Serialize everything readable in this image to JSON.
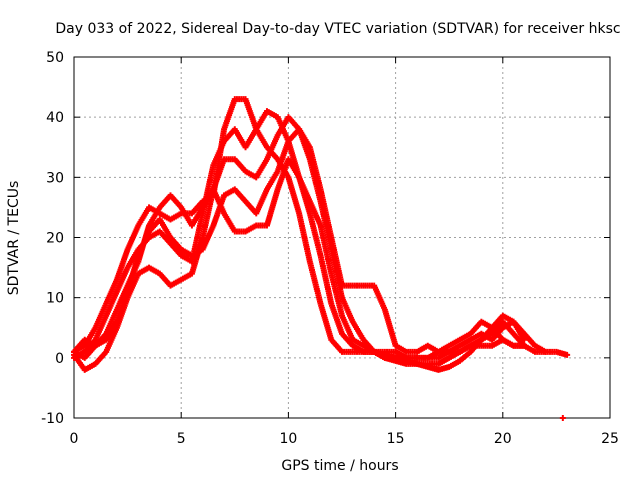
{
  "chart_data": {
    "type": "scatter",
    "title": "Day 033 of 2022, Sidereal Day-to-day VTEC variation (SDTVAR) for receiver hksc",
    "xlabel": "GPS time / hours",
    "ylabel": "SDTVAR / TECUs",
    "xlim": [
      0,
      25
    ],
    "ylim": [
      -10,
      50
    ],
    "xticks": [
      "0",
      "5",
      "10",
      "15",
      "20",
      "25"
    ],
    "yticks": [
      "-10",
      "0",
      "10",
      "20",
      "30",
      "40",
      "50"
    ],
    "grid": true,
    "marker": "+",
    "marker_color": "#ff0000",
    "series": [
      {
        "name": "trace-1",
        "points": [
          [
            0.0,
            1
          ],
          [
            0.5,
            2
          ],
          [
            1.0,
            5
          ],
          [
            1.5,
            9
          ],
          [
            2.0,
            13
          ],
          [
            2.5,
            18
          ],
          [
            3.0,
            22
          ],
          [
            3.5,
            25
          ],
          [
            4.0,
            24
          ],
          [
            4.5,
            23
          ],
          [
            5.0,
            24
          ],
          [
            5.5,
            24
          ],
          [
            6.0,
            26
          ],
          [
            6.5,
            27
          ],
          [
            7.0,
            38
          ],
          [
            7.5,
            43
          ],
          [
            8.0,
            43
          ],
          [
            8.5,
            38
          ],
          [
            9.0,
            35
          ],
          [
            9.5,
            33
          ],
          [
            10.0,
            30
          ],
          [
            10.5,
            24
          ],
          [
            11.0,
            16
          ],
          [
            11.5,
            9
          ],
          [
            12.0,
            3
          ],
          [
            12.5,
            1
          ],
          [
            13.0,
            1
          ],
          [
            13.5,
            1
          ],
          [
            14.0,
            1
          ],
          [
            14.5,
            1
          ],
          [
            15.0,
            1
          ],
          [
            15.5,
            0
          ],
          [
            16.0,
            0
          ],
          [
            16.5,
            0
          ],
          [
            17.0,
            1
          ],
          [
            17.5,
            2
          ],
          [
            18.0,
            3
          ],
          [
            18.5,
            4
          ],
          [
            19.0,
            6
          ],
          [
            19.5,
            5
          ],
          [
            20.0,
            3
          ],
          [
            20.5,
            2
          ],
          [
            21.0,
            2
          ],
          [
            21.5,
            1
          ],
          [
            22.0,
            1
          ],
          [
            22.5,
            1
          ],
          [
            23.0,
            0.5
          ]
        ]
      },
      {
        "name": "trace-2",
        "points": [
          [
            0.0,
            0
          ],
          [
            0.5,
            1
          ],
          [
            1.0,
            3
          ],
          [
            1.5,
            7
          ],
          [
            2.0,
            11
          ],
          [
            2.5,
            15
          ],
          [
            3.0,
            18
          ],
          [
            3.5,
            20
          ],
          [
            4.0,
            21
          ],
          [
            4.5,
            19
          ],
          [
            5.0,
            17
          ],
          [
            5.5,
            16
          ],
          [
            6.0,
            24
          ],
          [
            6.5,
            32
          ],
          [
            7.0,
            36
          ],
          [
            7.5,
            38
          ],
          [
            8.0,
            35
          ],
          [
            8.5,
            38
          ],
          [
            9.0,
            41
          ],
          [
            9.5,
            40
          ],
          [
            10.0,
            36
          ],
          [
            10.5,
            30
          ],
          [
            11.0,
            24
          ],
          [
            11.5,
            17
          ],
          [
            12.0,
            9
          ],
          [
            12.5,
            4
          ],
          [
            13.0,
            2
          ],
          [
            13.5,
            1
          ],
          [
            14.0,
            1
          ],
          [
            14.5,
            0
          ],
          [
            15.0,
            0
          ],
          [
            15.5,
            -0.5
          ],
          [
            16.0,
            -1
          ],
          [
            16.5,
            -1
          ],
          [
            17.0,
            -1
          ],
          [
            17.5,
            0
          ],
          [
            18.0,
            1
          ],
          [
            18.5,
            2
          ],
          [
            19.0,
            3
          ],
          [
            19.5,
            5
          ],
          [
            20.0,
            7
          ],
          [
            20.5,
            6
          ],
          [
            21.0,
            4
          ],
          [
            21.5,
            2
          ],
          [
            22.0,
            1
          ]
        ]
      },
      {
        "name": "trace-3",
        "points": [
          [
            0.0,
            0.5
          ],
          [
            0.5,
            -2
          ],
          [
            1.0,
            -1
          ],
          [
            1.5,
            1
          ],
          [
            2.0,
            5
          ],
          [
            2.5,
            10
          ],
          [
            3.0,
            14
          ],
          [
            3.5,
            15
          ],
          [
            4.0,
            14
          ],
          [
            4.5,
            12
          ],
          [
            5.0,
            13
          ],
          [
            5.5,
            14
          ],
          [
            6.0,
            20
          ],
          [
            6.5,
            28
          ],
          [
            7.0,
            33
          ],
          [
            7.5,
            33
          ],
          [
            8.0,
            31
          ],
          [
            8.5,
            30
          ],
          [
            9.0,
            33
          ],
          [
            9.5,
            37
          ],
          [
            10.0,
            40
          ],
          [
            10.5,
            38
          ],
          [
            11.0,
            33
          ],
          [
            11.5,
            26
          ],
          [
            12.0,
            18
          ],
          [
            12.5,
            10
          ],
          [
            13.0,
            6
          ],
          [
            13.5,
            3
          ],
          [
            14.0,
            1
          ],
          [
            14.5,
            0
          ],
          [
            15.0,
            -0.5
          ],
          [
            15.5,
            -1
          ],
          [
            16.0,
            -1
          ],
          [
            16.5,
            -1.5
          ],
          [
            17.0,
            -2
          ],
          [
            17.5,
            -1.5
          ],
          [
            18.0,
            -0.5
          ],
          [
            18.5,
            1
          ],
          [
            19.0,
            3
          ],
          [
            19.5,
            4
          ],
          [
            20.0,
            6
          ],
          [
            20.5,
            4
          ],
          [
            21.0,
            2
          ]
        ]
      },
      {
        "name": "trace-4",
        "points": [
          [
            0.0,
            1
          ],
          [
            0.5,
            3
          ],
          [
            1.0,
            2
          ],
          [
            1.5,
            3
          ],
          [
            2.0,
            6
          ],
          [
            2.5,
            11
          ],
          [
            3.0,
            17
          ],
          [
            3.5,
            21
          ],
          [
            4.0,
            23
          ],
          [
            4.5,
            20
          ],
          [
            5.0,
            18
          ],
          [
            5.5,
            17
          ],
          [
            6.0,
            18
          ],
          [
            6.5,
            22
          ],
          [
            7.0,
            27
          ],
          [
            7.5,
            28
          ],
          [
            8.0,
            26
          ],
          [
            8.5,
            24
          ],
          [
            9.0,
            28
          ],
          [
            9.5,
            31
          ],
          [
            10.0,
            36
          ],
          [
            10.5,
            38
          ],
          [
            11.0,
            35
          ],
          [
            11.5,
            28
          ],
          [
            12.0,
            20
          ],
          [
            12.5,
            12
          ],
          [
            13.0,
            12
          ],
          [
            13.5,
            12
          ],
          [
            14.0,
            12
          ],
          [
            14.5,
            8
          ],
          [
            15.0,
            2
          ],
          [
            15.5,
            1
          ],
          [
            16.0,
            1
          ],
          [
            16.5,
            2
          ],
          [
            17.0,
            1
          ],
          [
            17.5,
            1
          ],
          [
            18.0,
            2
          ],
          [
            18.5,
            3
          ],
          [
            19.0,
            4
          ],
          [
            19.5,
            3
          ],
          [
            20.0,
            5
          ],
          [
            20.5,
            6
          ],
          [
            21.0,
            3
          ]
        ]
      },
      {
        "name": "trace-5",
        "points": [
          [
            0.0,
            1
          ],
          [
            0.5,
            0
          ],
          [
            1.0,
            2
          ],
          [
            1.5,
            4
          ],
          [
            2.0,
            8
          ],
          [
            2.5,
            12
          ],
          [
            3.0,
            16
          ],
          [
            3.5,
            22
          ],
          [
            4.0,
            25
          ],
          [
            4.5,
            27
          ],
          [
            5.0,
            25
          ],
          [
            5.5,
            22
          ],
          [
            6.0,
            25
          ],
          [
            6.5,
            28
          ],
          [
            7.0,
            24
          ],
          [
            7.5,
            21
          ],
          [
            8.0,
            21
          ],
          [
            8.5,
            22
          ],
          [
            9.0,
            22
          ],
          [
            9.5,
            28
          ],
          [
            10.0,
            33
          ],
          [
            10.5,
            30
          ],
          [
            11.0,
            26
          ],
          [
            11.5,
            22
          ],
          [
            12.0,
            14
          ],
          [
            12.5,
            7
          ],
          [
            13.0,
            3
          ],
          [
            13.5,
            2
          ],
          [
            14.0,
            1
          ],
          [
            14.5,
            0.5
          ],
          [
            15.0,
            0
          ],
          [
            15.5,
            0
          ],
          [
            16.0,
            0
          ],
          [
            16.5,
            0
          ],
          [
            17.0,
            0
          ],
          [
            17.5,
            1
          ],
          [
            18.0,
            1
          ],
          [
            18.5,
            2
          ],
          [
            19.0,
            2
          ],
          [
            19.5,
            2
          ],
          [
            20.0,
            3
          ],
          [
            20.5,
            2
          ],
          [
            21.0,
            2
          ]
        ]
      },
      {
        "name": "outlier",
        "points": [
          [
            22.8,
            -10
          ]
        ]
      }
    ]
  }
}
